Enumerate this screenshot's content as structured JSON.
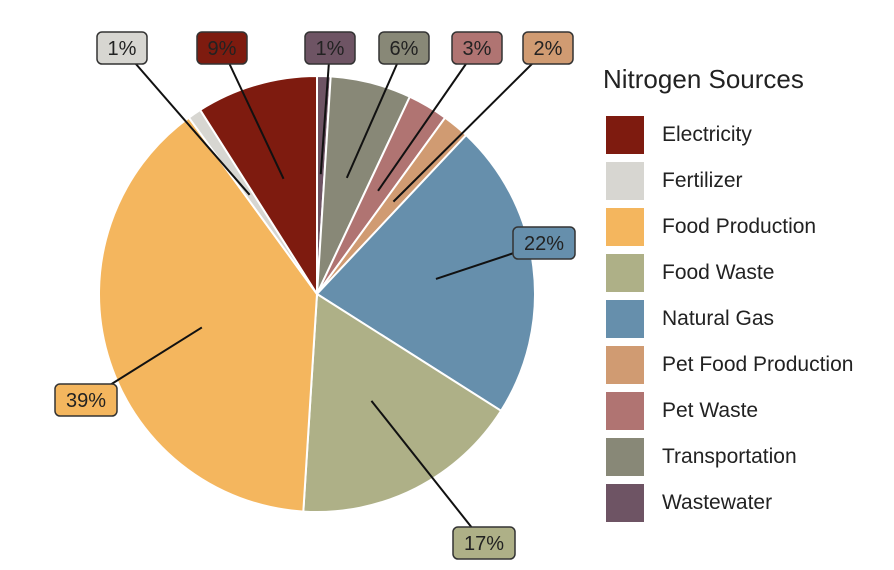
{
  "chart_data": {
    "type": "pie",
    "legend_title": "Nitrogen Sources",
    "legend_position": "right",
    "slices": [
      {
        "name": "Wastewater",
        "value": 1,
        "label": "1%",
        "color": "#6e5464"
      },
      {
        "name": "Transportation",
        "value": 6,
        "label": "6%",
        "color": "#888877"
      },
      {
        "name": "Pet Waste",
        "value": 3,
        "label": "3%",
        "color": "#b07472"
      },
      {
        "name": "Pet Food Production",
        "value": 2,
        "label": "2%",
        "color": "#d09b72"
      },
      {
        "name": "Natural Gas",
        "value": 22,
        "label": "22%",
        "color": "#668fac"
      },
      {
        "name": "Food Waste",
        "value": 17,
        "label": "17%",
        "color": "#aeb087"
      },
      {
        "name": "Food Production",
        "value": 39,
        "label": "39%",
        "color": "#f4b65e"
      },
      {
        "name": "Fertilizer",
        "value": 1,
        "label": "1%",
        "color": "#d7d6d1"
      },
      {
        "name": "Electricity",
        "value": 9,
        "label": "9%",
        "color": "#7e1b0f"
      }
    ],
    "legend_order": [
      "Electricity",
      "Fertilizer",
      "Food Production",
      "Food Waste",
      "Natural Gas",
      "Pet Food Production",
      "Pet Waste",
      "Transportation",
      "Wastewater"
    ]
  }
}
